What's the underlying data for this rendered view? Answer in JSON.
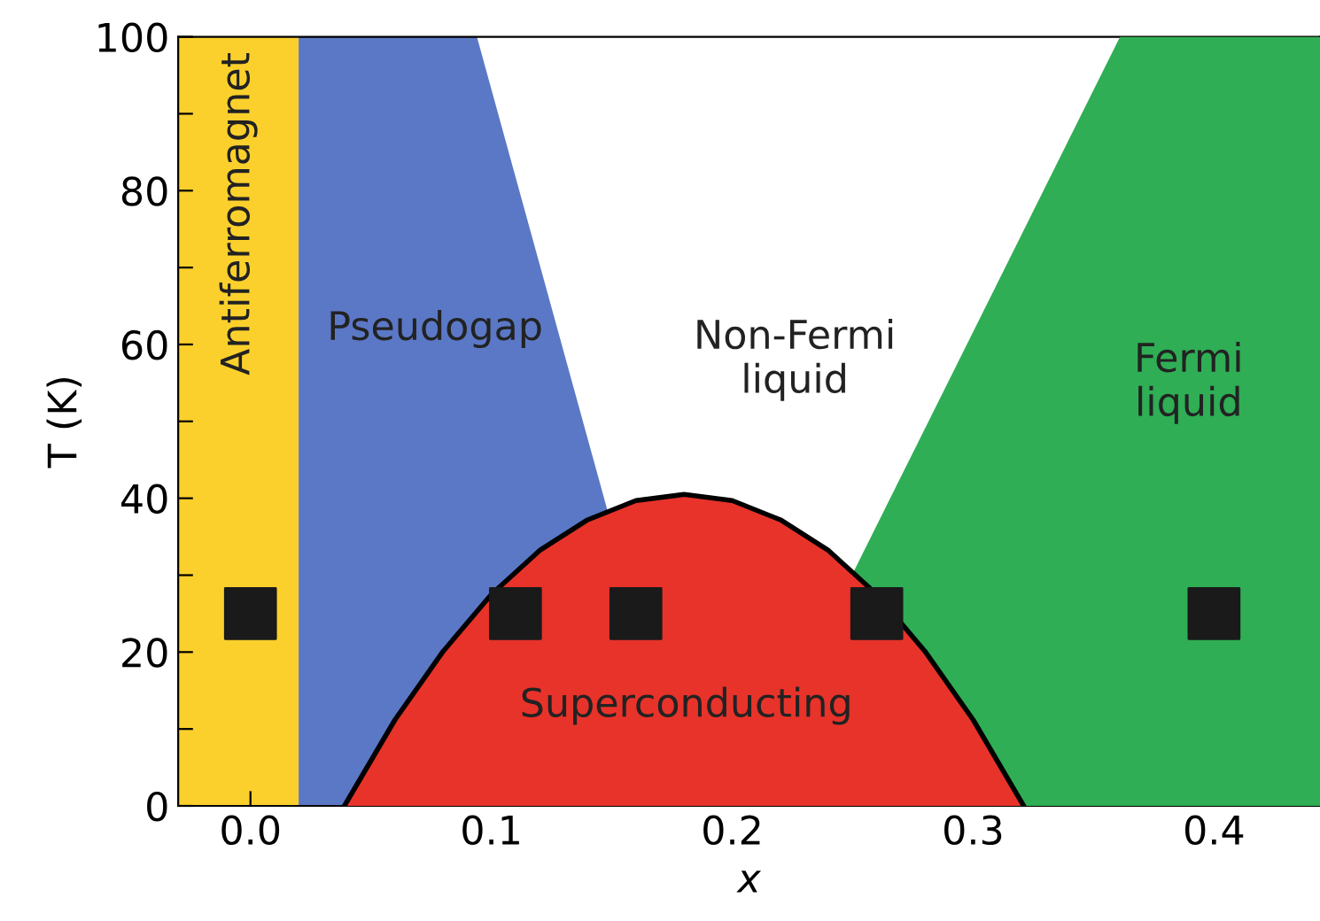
{
  "chart_data": {
    "type": "area",
    "xlabel": "x",
    "ylabel": "T (K)",
    "xlim": [
      -0.03,
      0.444
    ],
    "ylim": [
      0,
      100
    ],
    "xticks": [
      {
        "value": 0.0,
        "label": "0.0"
      },
      {
        "value": 0.05,
        "label": null
      },
      {
        "value": 0.1,
        "label": "0.1"
      },
      {
        "value": 0.15,
        "label": null
      },
      {
        "value": 0.2,
        "label": "0.2"
      },
      {
        "value": 0.25,
        "label": null
      },
      {
        "value": 0.3,
        "label": "0.3"
      },
      {
        "value": 0.35,
        "label": null
      },
      {
        "value": 0.4,
        "label": "0.4"
      }
    ],
    "yticks": [
      0,
      {
        "value": 10,
        "label": null
      },
      20,
      {
        "value": 30,
        "label": null
      },
      40,
      {
        "value": 50,
        "label": null
      },
      60,
      {
        "value": 70,
        "label": null
      },
      80,
      {
        "value": 90,
        "label": null
      },
      100
    ],
    "bands": [
      {
        "axis": "x",
        "from": -0.03,
        "to": 0.02,
        "label": "Antiferromagnet",
        "color": "#fcd02c"
      }
    ],
    "series": [
      {
        "color": "#5b78c6",
        "x": [
          0.02,
          0.02,
          0.094,
          0.182
        ],
        "values": [
          0,
          100,
          100,
          0
        ]
      },
      {
        "color": "#2fae55",
        "x": [
          0.202,
          0.361,
          0.444
        ],
        "values": [
          0,
          100,
          100
        ]
      },
      {
        "color": "#e8332a",
        "x": [
          0.039,
          0.06,
          0.08,
          0.1,
          0.12,
          0.14,
          0.16,
          0.18,
          0.2,
          0.22,
          0.24,
          0.26,
          0.28,
          0.3,
          0.321
        ],
        "values": [
          0,
          11.2,
          20.1,
          27.5,
          33.2,
          37.2,
          39.7,
          40.5,
          39.7,
          37.2,
          33.2,
          27.5,
          20.1,
          11.2,
          0
        ]
      },
      {
        "type": "scatter",
        "color": "#1a1a1a",
        "marker": "square",
        "x": [
          0.0,
          0.11,
          0.16,
          0.26,
          0.4
        ],
        "values": [
          25,
          25,
          25,
          25,
          25
        ]
      }
    ],
    "annotations": [
      "Pseudogap",
      "Non-Fermi\nliquid",
      "Fermi\nliquid",
      "Superconducting"
    ]
  }
}
